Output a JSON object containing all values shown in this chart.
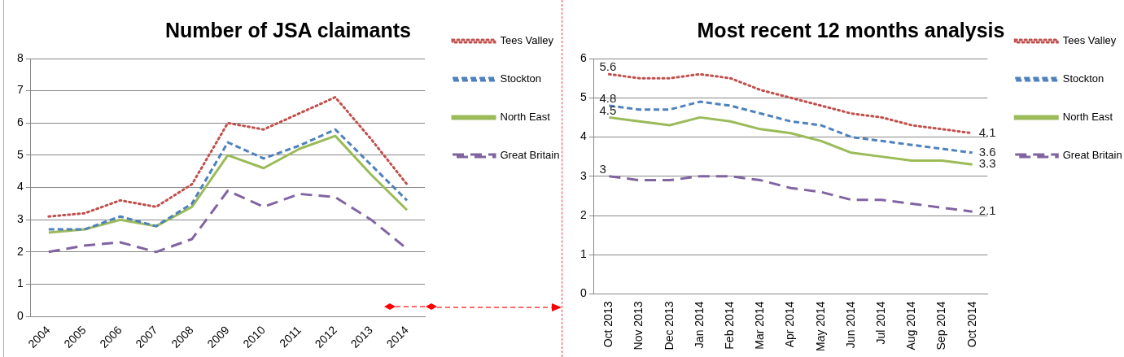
{
  "chart_data": [
    {
      "type": "line",
      "title": "Number of JSA claimants",
      "categories": [
        "2004",
        "2005",
        "2006",
        "2007",
        "2008",
        "2009",
        "2010",
        "2011",
        "2012",
        "2013",
        "2014"
      ],
      "ylim": [
        0,
        8
      ],
      "yticks": [
        0,
        1,
        2,
        3,
        4,
        5,
        6,
        7,
        8
      ],
      "grid": "y",
      "legend": "right",
      "marker": "none",
      "series": [
        {
          "name": "Tees Valley",
          "color": "#c0504d",
          "line_style": "dotted",
          "values": [
            3.1,
            3.2,
            3.6,
            3.4,
            4.1,
            6.0,
            5.8,
            6.3,
            6.8,
            5.5,
            4.1
          ]
        },
        {
          "name": "Stockton",
          "color": "#4f81bd",
          "line_style": "dashed",
          "values": [
            2.7,
            2.7,
            3.1,
            2.8,
            3.5,
            5.4,
            4.9,
            5.3,
            5.8,
            4.7,
            3.6
          ]
        },
        {
          "name": "North East",
          "color": "#9bbb59",
          "line_style": "solid",
          "values": [
            2.6,
            2.7,
            3.0,
            2.8,
            3.4,
            5.0,
            4.6,
            5.2,
            5.6,
            4.4,
            3.3
          ]
        },
        {
          "name": "Great Britain",
          "color": "#8064a2",
          "line_style": "longdash",
          "values": [
            2.0,
            2.2,
            2.3,
            2.0,
            2.4,
            3.9,
            3.4,
            3.8,
            3.7,
            3.0,
            2.1
          ]
        }
      ]
    },
    {
      "type": "line",
      "title": "Most recent 12 months analysis",
      "categories": [
        "Oct 2013",
        "Nov 2013",
        "Dec 2013",
        "Jan 2014",
        "Feb 2014",
        "Mar 2014",
        "Apr 2014",
        "May 2014",
        "Jun 2014",
        "Jul 2014",
        "Aug 2014",
        "Sep 2014",
        "Oct 2014"
      ],
      "ylim": [
        0,
        6
      ],
      "yticks": [
        0,
        1,
        2,
        3,
        4,
        5,
        6
      ],
      "grid": "y",
      "legend": "right",
      "marker": "none",
      "series": [
        {
          "name": "Tees Valley",
          "color": "#c0504d",
          "line_style": "dotted",
          "values": [
            5.6,
            5.5,
            5.5,
            5.6,
            5.5,
            5.2,
            5.0,
            4.8,
            4.6,
            4.5,
            4.3,
            4.2,
            4.1
          ],
          "value_labels": [
            "5.6",
            null,
            null,
            null,
            null,
            null,
            null,
            null,
            null,
            null,
            null,
            null,
            "4.1"
          ]
        },
        {
          "name": "Stockton",
          "color": "#4f81bd",
          "line_style": "dashed",
          "values": [
            4.8,
            4.7,
            4.7,
            4.9,
            4.8,
            4.6,
            4.4,
            4.3,
            4.0,
            3.9,
            3.8,
            3.7,
            3.6
          ],
          "value_labels": [
            "4.8",
            null,
            null,
            null,
            null,
            null,
            null,
            null,
            null,
            null,
            null,
            null,
            "3.6"
          ]
        },
        {
          "name": "North East",
          "color": "#9bbb59",
          "line_style": "solid",
          "values": [
            4.5,
            4.4,
            4.3,
            4.5,
            4.4,
            4.2,
            4.1,
            3.9,
            3.6,
            3.5,
            3.4,
            3.4,
            3.3
          ],
          "value_labels": [
            "4.5",
            null,
            null,
            null,
            null,
            null,
            null,
            null,
            null,
            null,
            null,
            null,
            "3.3"
          ]
        },
        {
          "name": "Great Britain",
          "color": "#8064a2",
          "line_style": "longdash",
          "values": [
            3.0,
            2.9,
            2.9,
            3.0,
            3.0,
            2.9,
            2.7,
            2.6,
            2.4,
            2.4,
            2.3,
            2.2,
            2.1
          ],
          "value_labels": [
            "3",
            null,
            null,
            null,
            null,
            null,
            null,
            null,
            null,
            null,
            null,
            null,
            "2.1"
          ]
        }
      ]
    }
  ]
}
